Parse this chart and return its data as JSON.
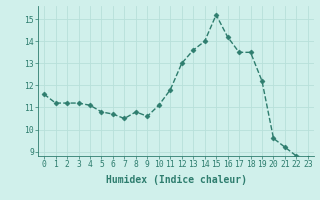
{
  "x": [
    0,
    1,
    2,
    3,
    4,
    5,
    6,
    7,
    8,
    9,
    10,
    11,
    12,
    13,
    14,
    15,
    16,
    17,
    18,
    19,
    20,
    21,
    22,
    23
  ],
  "y": [
    11.6,
    11.2,
    11.2,
    11.2,
    11.1,
    10.8,
    10.7,
    10.5,
    10.8,
    10.6,
    11.1,
    11.8,
    13.0,
    13.6,
    14.0,
    15.2,
    14.2,
    13.5,
    13.5,
    12.2,
    9.6,
    9.2,
    8.8,
    8.7
  ],
  "line_color": "#2e7d6e",
  "marker": "D",
  "marker_size": 2.5,
  "bg_color": "#d0f0eb",
  "grid_color": "#b8e0da",
  "xlabel": "Humidex (Indice chaleur)",
  "ylim": [
    8.8,
    15.6
  ],
  "xlim": [
    -0.5,
    23.5
  ],
  "yticks": [
    9,
    10,
    11,
    12,
    13,
    14,
    15
  ],
  "xticks": [
    0,
    1,
    2,
    3,
    4,
    5,
    6,
    7,
    8,
    9,
    10,
    11,
    12,
    13,
    14,
    15,
    16,
    17,
    18,
    19,
    20,
    21,
    22,
    23
  ],
  "tick_label_fontsize": 5.8,
  "xlabel_fontsize": 7.0,
  "tick_color": "#2e7d6e",
  "label_color": "#2e7d6e",
  "spine_color": "#2e7d6e",
  "line_width": 1.0
}
